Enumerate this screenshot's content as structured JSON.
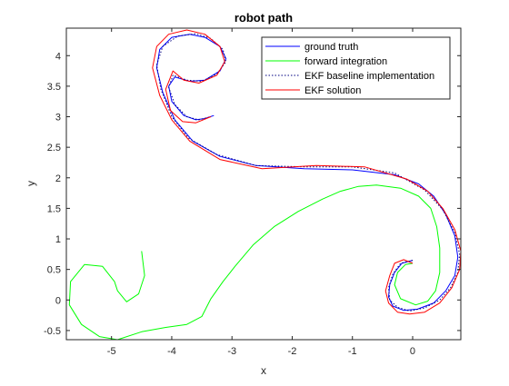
{
  "chart_data": {
    "type": "line",
    "title": "robot path",
    "xlabel": "x",
    "ylabel": "y",
    "xlim": [
      -5.75,
      0.8
    ],
    "ylim": [
      -0.65,
      4.45
    ],
    "xticks": [
      -5,
      -4,
      -3,
      -2,
      -1,
      0
    ],
    "yticks": [
      -0.5,
      0,
      0.5,
      1,
      1.5,
      2,
      2.5,
      3,
      3.5,
      4
    ],
    "xtick_labels": [
      "-5",
      "-4",
      "-3",
      "-2",
      "-1",
      "0"
    ],
    "ytick_labels": [
      "-0.5",
      "0",
      "0.5",
      "1",
      "1.5",
      "2",
      "2.5",
      "3",
      "3.5",
      "4"
    ],
    "grid": false,
    "legend_position": "top-right",
    "series": [
      {
        "name": "ground truth",
        "color": "#0000ff",
        "style": "solid",
        "x": [
          0,
          -0.18,
          -0.3,
          -0.38,
          -0.4,
          -0.33,
          -0.15,
          0.08,
          0.35,
          0.55,
          0.7,
          0.75,
          0.7,
          0.55,
          0.35,
          0.1,
          -0.3,
          -1.0,
          -1.8,
          -2.6,
          -3.2,
          -3.65,
          -3.95,
          -4.15,
          -4.25,
          -4.2,
          -4.0,
          -3.7,
          -3.45,
          -3.2,
          -3.1,
          -3.2,
          -3.45,
          -3.7,
          -3.95,
          -4.05,
          -4.0,
          -3.8,
          -3.6,
          -3.45,
          -3.3
        ],
        "y": [
          0.65,
          0.6,
          0.45,
          0.25,
          0.05,
          -0.1,
          -0.17,
          -0.15,
          -0.05,
          0.15,
          0.4,
          0.7,
          1.05,
          1.4,
          1.7,
          1.9,
          2.05,
          2.13,
          2.15,
          2.2,
          2.35,
          2.6,
          2.95,
          3.4,
          3.8,
          4.1,
          4.3,
          4.35,
          4.3,
          4.15,
          3.95,
          3.75,
          3.6,
          3.58,
          3.65,
          3.5,
          3.25,
          3.02,
          2.95,
          2.97,
          3.02
        ]
      },
      {
        "name": "forward integration",
        "color": "#00ff00",
        "style": "solid",
        "x": [
          0,
          -0.12,
          -0.25,
          -0.3,
          -0.2,
          0.05,
          0.25,
          0.38,
          0.45,
          0.45,
          0.4,
          0.3,
          0.1,
          -0.2,
          -0.6,
          -0.9,
          -1.2,
          -1.5,
          -1.9,
          -2.3,
          -2.65,
          -2.95,
          -3.15,
          -3.35,
          -3.5,
          -3.75,
          -4.1,
          -4.5,
          -4.9,
          -5.2,
          -5.5,
          -5.7,
          -5.68,
          -5.45,
          -5.15,
          -4.95,
          -4.9,
          -4.75,
          -4.55,
          -4.45,
          -4.5
        ],
        "y": [
          0.6,
          0.58,
          0.45,
          0.25,
          0.02,
          -0.08,
          -0.02,
          0.15,
          0.45,
          0.85,
          1.2,
          1.5,
          1.7,
          1.83,
          1.88,
          1.86,
          1.78,
          1.65,
          1.45,
          1.2,
          0.9,
          0.55,
          0.3,
          0.02,
          -0.27,
          -0.4,
          -0.45,
          -0.52,
          -0.65,
          -0.6,
          -0.4,
          -0.08,
          0.3,
          0.58,
          0.55,
          0.3,
          0.15,
          -0.03,
          0.1,
          0.4,
          0.8
        ]
      },
      {
        "name": "EKF baseline implementation",
        "color": "#000080",
        "style": "dotted",
        "x": [
          0,
          -0.2,
          -0.33,
          -0.4,
          -0.38,
          -0.25,
          -0.05,
          0.2,
          0.45,
          0.63,
          0.75,
          0.78,
          0.7,
          0.5,
          0.2,
          -0.3,
          -1.0,
          -1.8,
          -2.6,
          -3.25,
          -3.72,
          -4.0,
          -4.18,
          -4.25,
          -4.15,
          -3.9,
          -3.6,
          -3.35,
          -3.15,
          -3.1,
          -3.25,
          -3.5,
          -3.75,
          -3.98,
          -4.05,
          -3.95,
          -3.75,
          -3.55,
          -3.35
        ],
        "y": [
          0.65,
          0.6,
          0.42,
          0.2,
          0.0,
          -0.12,
          -0.18,
          -0.13,
          0.0,
          0.2,
          0.45,
          0.75,
          1.1,
          1.48,
          1.8,
          2.08,
          2.18,
          2.18,
          2.2,
          2.38,
          2.65,
          3.0,
          3.45,
          3.85,
          4.15,
          4.32,
          4.36,
          4.28,
          4.1,
          3.9,
          3.7,
          3.58,
          3.6,
          3.68,
          3.48,
          3.2,
          3.0,
          2.95,
          3.0
        ]
      },
      {
        "name": "EKF solution",
        "color": "#ff0000",
        "style": "solid",
        "x": [
          0,
          -0.15,
          -0.3,
          -0.38,
          -0.45,
          -0.4,
          -0.25,
          -0.05,
          0.2,
          0.45,
          0.65,
          0.78,
          0.8,
          0.7,
          0.5,
          0.25,
          -0.1,
          -0.8,
          -1.6,
          -2.5,
          -3.2,
          -3.7,
          -4.0,
          -4.2,
          -4.32,
          -4.25,
          -4.05,
          -3.75,
          -3.45,
          -3.2,
          -3.12,
          -3.25,
          -3.55,
          -3.8,
          -3.98,
          -4.1,
          -4.02,
          -3.82,
          -3.6,
          -3.35
        ],
        "y": [
          0.6,
          0.66,
          0.6,
          0.4,
          0.15,
          -0.05,
          -0.2,
          -0.23,
          -0.2,
          -0.05,
          0.2,
          0.5,
          0.8,
          1.15,
          1.5,
          1.78,
          1.98,
          2.18,
          2.2,
          2.15,
          2.3,
          2.6,
          2.95,
          3.35,
          3.8,
          4.15,
          4.35,
          4.42,
          4.35,
          4.15,
          3.9,
          3.68,
          3.55,
          3.6,
          3.75,
          3.45,
          3.1,
          2.92,
          2.9,
          3.0
        ]
      }
    ]
  }
}
